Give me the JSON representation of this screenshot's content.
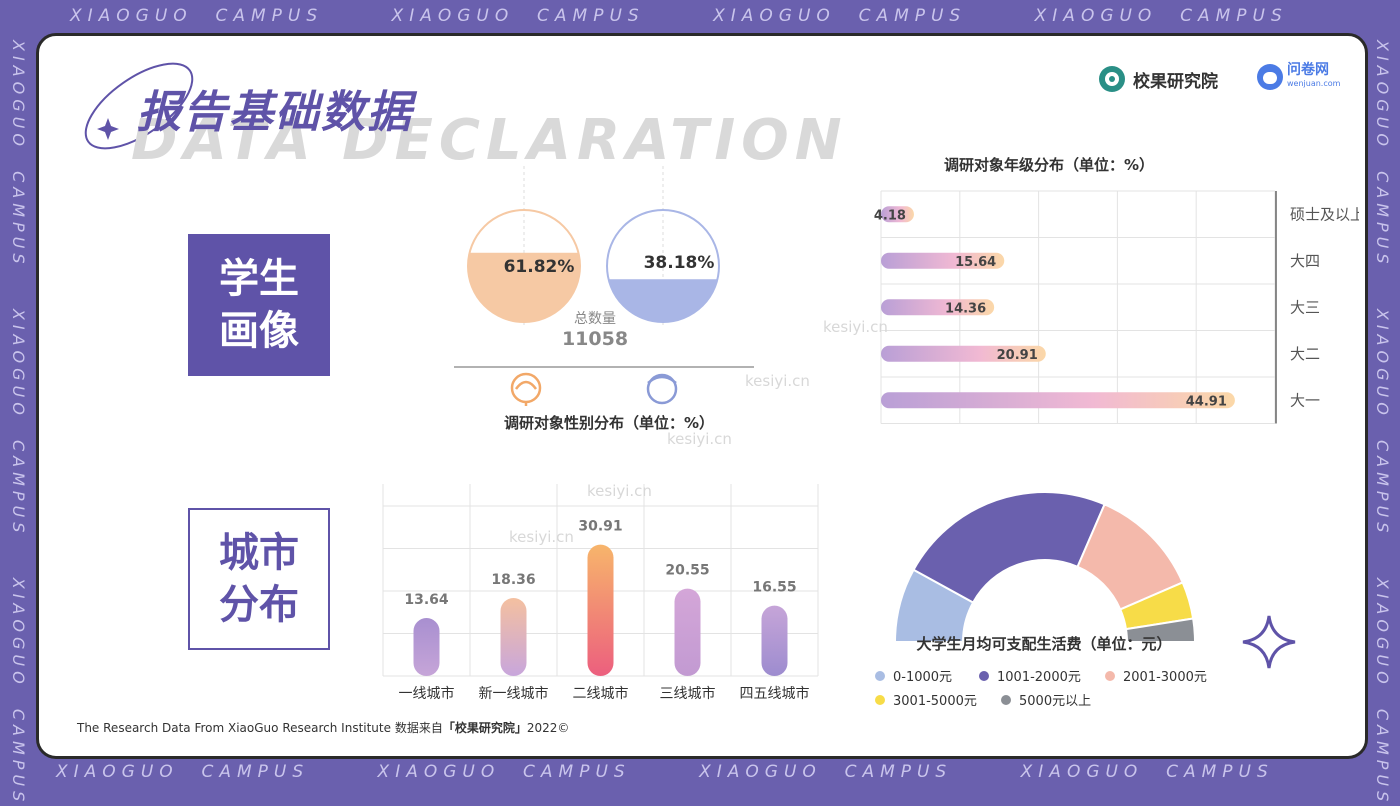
{
  "frame": {
    "top_text": "XIAOGUO  CAMPUS",
    "side_text": "XIAOGUO  CAMPUS"
  },
  "header": {
    "title_cn": "报告基础数据",
    "title_en": "DATA DECLARATION",
    "brand1": "校果研究院",
    "brand2": "问卷网",
    "brand2_sub": "wenjuan.com"
  },
  "sections": {
    "students": "学生\n画像",
    "cities": "城市\n分布"
  },
  "watermark": "kesiyi.cn",
  "footer": {
    "prefix": "The Research Data From XiaoGuo Research Institute 数据来自",
    "bold": "「校果研究院」",
    "suffix": "2022©"
  },
  "colors": {
    "accent": "#5f53a8",
    "female": "#f6c9a4",
    "male": "#a9b6e6"
  },
  "chart_data": [
    {
      "type": "pie",
      "title": "调研对象性别分布（单位：%）",
      "values": [
        61.82,
        38.18
      ],
      "labels": [
        "61.82%",
        "38.18%"
      ],
      "icons": [
        "female-icon",
        "male-icon"
      ],
      "total_label": "总数量",
      "total_value": "11058"
    },
    {
      "type": "bar",
      "orientation": "horizontal",
      "title": "调研对象年级分布（单位：%）",
      "categories": [
        "硕士及以上",
        "大四",
        "大三",
        "大二",
        "大一"
      ],
      "values": [
        4.18,
        15.64,
        14.36,
        20.91,
        44.91
      ],
      "xlim": [
        0,
        50
      ],
      "grid": true
    },
    {
      "type": "bar",
      "categories": [
        "一线城市",
        "新一线城市",
        "二线城市",
        "三线城市",
        "四五线城市"
      ],
      "values": [
        13.64,
        18.36,
        30.91,
        20.55,
        16.55
      ],
      "ylim": [
        0,
        40
      ],
      "grid": true
    },
    {
      "type": "pie",
      "style": "half-donut",
      "title": "大学生月均可支配生活费（单位：元）",
      "series": [
        {
          "name": "0-1000元",
          "value": 16,
          "color": "#a9bde3"
        },
        {
          "name": "1001-2000元",
          "value": 47,
          "color": "#6a60ae"
        },
        {
          "name": "2001-3000元",
          "value": 24,
          "color": "#f4b9ab"
        },
        {
          "name": "3001-5000元",
          "value": 8,
          "color": "#f7dc48"
        },
        {
          "name": "5000元以上",
          "value": 5,
          "color": "#8b8f95"
        }
      ],
      "legend": "bottom"
    }
  ]
}
